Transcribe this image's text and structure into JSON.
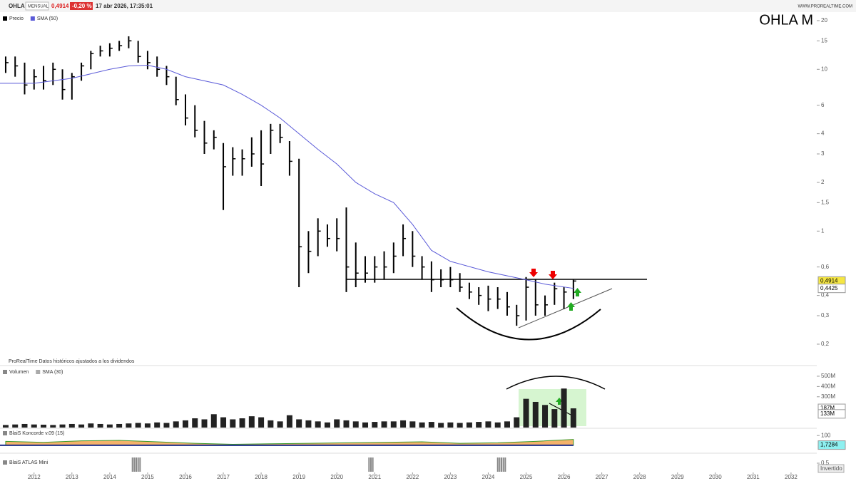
{
  "header": {
    "symbol": "OHLA",
    "period": "MENSUAL",
    "price": "0,4914",
    "change": "-0,20 %",
    "datetime": "17 abr 2026, 17:35:01",
    "site": "WWW.PROREALTIME.COM",
    "big_title": "OHLA  M",
    "source": "ProRealTime Datos históricos ajustados a los dividendos"
  },
  "chart_data": [
    {
      "type": "ohlc",
      "name": "Precio",
      "color": "#000000",
      "log_scale": true,
      "x": [
        2011.25,
        2011.5,
        2011.75,
        2012,
        2012.25,
        2012.5,
        2012.75,
        2013,
        2013.25,
        2013.5,
        2013.75,
        2014,
        2014.25,
        2014.5,
        2014.75,
        2015,
        2015.25,
        2015.5,
        2015.75,
        2016,
        2016.25,
        2016.5,
        2016.75,
        2017,
        2017.25,
        2017.5,
        2017.75,
        2018,
        2018.25,
        2018.5,
        2018.75,
        2019,
        2019.25,
        2019.5,
        2019.75,
        2020,
        2020.25,
        2020.5,
        2020.75,
        2021,
        2021.25,
        2021.5,
        2021.75,
        2022,
        2022.25,
        2022.5,
        2022.75,
        2023,
        2023.25,
        2023.5,
        2023.75,
        2024,
        2024.25,
        2024.5,
        2024.75,
        2025,
        2025.25,
        2025.5,
        2025.75,
        2026,
        2026.25
      ],
      "high": [
        12,
        12,
        11,
        10,
        10.5,
        11,
        10,
        9.5,
        11,
        13,
        14,
        14.5,
        15,
        16,
        15,
        13,
        12,
        10.5,
        9,
        7,
        6,
        4.8,
        4.2,
        3.5,
        3.3,
        3.2,
        3.8,
        4.2,
        4.6,
        4.6,
        3.6,
        2.8,
        1.0,
        1.2,
        1.1,
        1.2,
        1.4,
        0.85,
        0.7,
        0.7,
        0.75,
        0.85,
        1.1,
        1.0,
        0.7,
        0.65,
        0.58,
        0.6,
        0.55,
        0.48,
        0.45,
        0.46,
        0.45,
        0.42,
        0.35,
        0.52,
        0.5,
        0.4,
        0.48,
        0.45,
        0.5
      ],
      "low": [
        9.5,
        9,
        7,
        7.5,
        7.5,
        8,
        6.5,
        6.5,
        8.5,
        10,
        12,
        12,
        13,
        13.5,
        11,
        10,
        9,
        8,
        6,
        4.5,
        3.8,
        3,
        3.2,
        1.35,
        2.2,
        2.2,
        2.5,
        1.9,
        3,
        3.5,
        2.2,
        0.45,
        0.55,
        0.7,
        0.8,
        0.75,
        0.42,
        0.45,
        0.48,
        0.48,
        0.5,
        0.55,
        0.7,
        0.6,
        0.5,
        0.42,
        0.45,
        0.45,
        0.42,
        0.38,
        0.35,
        0.32,
        0.33,
        0.3,
        0.26,
        0.28,
        0.3,
        0.3,
        0.35,
        0.33,
        0.38
      ],
      "close": [
        11,
        10.5,
        8,
        9,
        8.5,
        10,
        7.5,
        9,
        10.5,
        12.5,
        13,
        13.5,
        14,
        15,
        12,
        11,
        10,
        9,
        6.5,
        5,
        4.2,
        3.5,
        3.8,
        2.5,
        2.8,
        2.8,
        3,
        2.6,
        4.2,
        3.8,
        2.7,
        0.8,
        0.75,
        1.0,
        0.9,
        0.9,
        0.6,
        0.55,
        0.55,
        0.6,
        0.6,
        0.7,
        0.9,
        0.7,
        0.6,
        0.5,
        0.5,
        0.5,
        0.45,
        0.42,
        0.4,
        0.38,
        0.38,
        0.34,
        0.3,
        0.45,
        0.35,
        0.35,
        0.44,
        0.42,
        0.4914
      ],
      "sma": {
        "name": "SMA (50)",
        "color": "#5a5ad8",
        "x": [
          2011.1,
          2012,
          2013,
          2014,
          2014.5,
          2015,
          2015.5,
          2016,
          2017,
          2017.5,
          2018,
          2018.5,
          2019,
          2019.5,
          2020,
          2020.5,
          2021,
          2021.5,
          2022,
          2022.5,
          2023,
          2024,
          2025,
          2025.5,
          2026.25
        ],
        "values": [
          8.2,
          8.2,
          8.8,
          10,
          10.5,
          10.6,
          10,
          9,
          8,
          7,
          6,
          5,
          4,
          3.2,
          2.6,
          2.0,
          1.7,
          1.5,
          1.1,
          0.76,
          0.65,
          0.56,
          0.5,
          0.47,
          0.4425
        ]
      },
      "last_labels": [
        {
          "value": 0.4914,
          "label": "0,4914",
          "color": "#f5e642"
        },
        {
          "value": 0.4425,
          "label": "0,4425",
          "color": "#ffffff"
        }
      ],
      "xlim": [
        2011.1,
        2032.68
      ],
      "xticks": [
        2012,
        2013,
        2014,
        2015,
        2016,
        2017,
        2018,
        2019,
        2020,
        2021,
        2022,
        2023,
        2024,
        2025,
        2026,
        2027,
        2028,
        2029,
        2030,
        2031,
        2032
      ],
      "ylim": [
        0.149,
        21.9
      ],
      "yticks": [
        {
          "value": 0.2,
          "label": "0,2"
        },
        {
          "value": 0.3,
          "label": "0,3"
        },
        {
          "value": 0.4,
          "label": "0,4"
        },
        {
          "value": 0.6,
          "label": "0,6"
        },
        1,
        {
          "value": 1.5,
          "label": "1,5"
        },
        2,
        3,
        4,
        6,
        10,
        15,
        20
      ]
    },
    {
      "type": "bar",
      "name": "Volumen",
      "sma_name": "SMA (30)",
      "color": "#222222",
      "x": [
        2011.25,
        2011.5,
        2011.75,
        2012,
        2012.25,
        2012.5,
        2012.75,
        2013,
        2013.25,
        2013.5,
        2013.75,
        2014,
        2014.25,
        2014.5,
        2014.75,
        2015,
        2015.25,
        2015.5,
        2015.75,
        2016,
        2016.25,
        2016.5,
        2016.75,
        2017,
        2017.25,
        2017.5,
        2017.75,
        2018,
        2018.25,
        2018.5,
        2018.75,
        2019,
        2019.25,
        2019.5,
        2019.75,
        2020,
        2020.25,
        2020.5,
        2020.75,
        2021,
        2021.25,
        2021.5,
        2021.75,
        2022,
        2022.25,
        2022.5,
        2022.75,
        2023,
        2023.25,
        2023.5,
        2023.75,
        2024,
        2024.25,
        2024.5,
        2024.75,
        2025,
        2025.25,
        2025.5,
        2025.75,
        2026,
        2026.25
      ],
      "values": [
        25,
        30,
        35,
        30,
        28,
        25,
        30,
        35,
        30,
        40,
        35,
        30,
        35,
        40,
        45,
        40,
        50,
        45,
        60,
        70,
        90,
        80,
        130,
        100,
        80,
        90,
        110,
        100,
        70,
        60,
        120,
        80,
        70,
        60,
        50,
        80,
        70,
        60,
        50,
        55,
        60,
        60,
        70,
        60,
        50,
        55,
        45,
        50,
        45,
        50,
        55,
        60,
        50,
        60,
        100,
        280,
        250,
        220,
        180,
        380,
        187
      ],
      "last_labels": [
        {
          "value": 187,
          "label": "187M",
          "color": "#ffffff"
        },
        {
          "value": 133,
          "label": "133M",
          "color": "#ffffff"
        }
      ],
      "ylim": [
        0,
        590
      ],
      "yticks": [
        {
          "value": 300,
          "label": "300M"
        },
        {
          "value": 400,
          "label": "400M"
        },
        {
          "value": 500,
          "label": "500M"
        }
      ]
    },
    {
      "type": "area",
      "name": "BlaiS Koncorde v.09 (15)",
      "color": "#f4b26a",
      "x": [
        2011.25,
        2012.25,
        2013.25,
        2014.25,
        2015.25,
        2016.25,
        2017.25,
        2018.25,
        2019.25,
        2020.25,
        2021.25,
        2022.25,
        2023.25,
        2024.25,
        2025.25,
        2026.25
      ],
      "values": [
        40,
        30,
        45,
        50,
        35,
        20,
        10,
        15,
        20,
        25,
        30,
        35,
        20,
        25,
        40,
        60
      ],
      "last_labels": [
        {
          "value": 1.7284,
          "label": "1,7284",
          "color": "#8ef0f0"
        }
      ],
      "ylim": [
        -60,
        160
      ],
      "yticks": [
        100
      ]
    },
    {
      "type": "signals",
      "name": "BlaiS ATLAS Mini",
      "color": "#888888",
      "x": [
        2014.6,
        2014.65,
        2014.7,
        2014.75,
        2014.8,
        2020.85,
        2020.9,
        2020.95,
        2024.25,
        2024.3,
        2024.35,
        2024.4,
        2024.45
      ],
      "ylim": [
        0,
        1
      ],
      "yticks": [
        {
          "value": 0.5,
          "label": "0,5"
        }
      ],
      "button": "Invertido"
    }
  ]
}
